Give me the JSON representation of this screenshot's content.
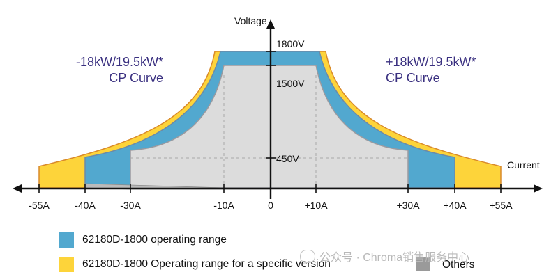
{
  "axes": {
    "y_label": "Voltage",
    "x_label": "Current",
    "voltage_ticks": [
      "1800V",
      "1500V",
      "450V"
    ],
    "current_ticks": [
      "-55A",
      "-40A",
      "-30A",
      "-10A",
      "0",
      "+10A",
      "+30A",
      "+40A",
      "+55A"
    ]
  },
  "cp_curves": {
    "left": {
      "line1": "-18kW/19.5kW*",
      "line2": "CP Curve"
    },
    "right": {
      "line1": "+18kW/19.5kW*",
      "line2": "CP Curve"
    }
  },
  "legend": {
    "blue_label": "62180D-1800 operating range",
    "yellow_label": "62180D-1800 Operating range for a specific version",
    "gray_label": "Others"
  },
  "watermark": {
    "text": "公众号 · Chroma销售服务中心"
  },
  "colors": {
    "blue": "#52a8cf",
    "yellow": "#fdd43a",
    "gray": "#dcdcdc",
    "curve_text": "#3a3080"
  }
}
